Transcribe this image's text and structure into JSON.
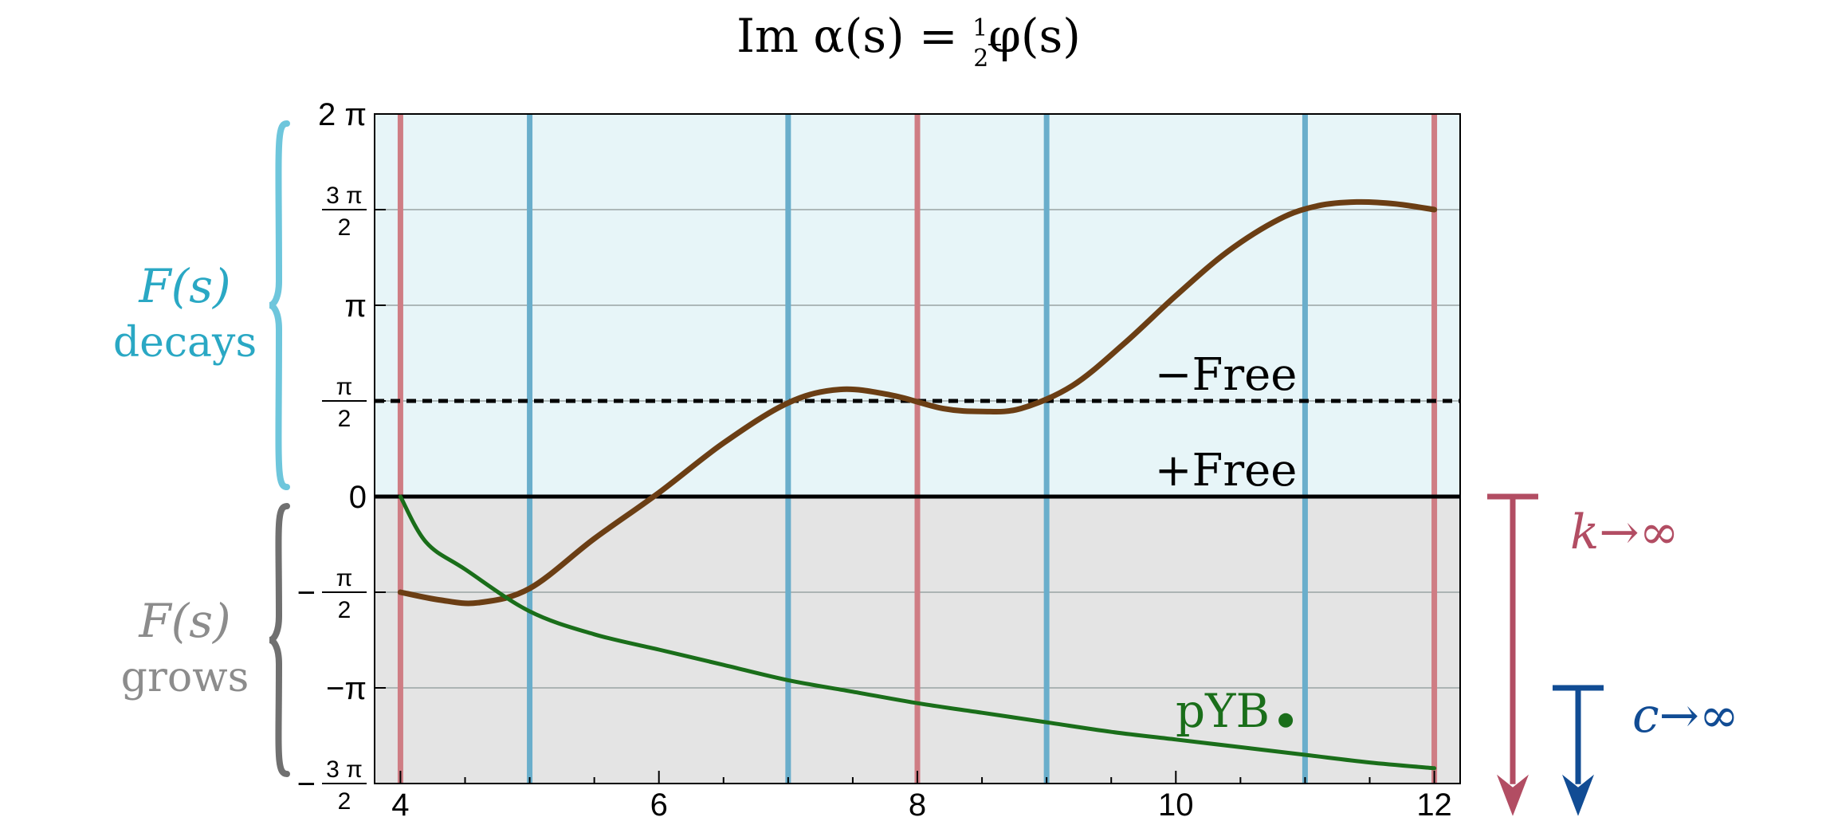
{
  "chart_data": {
    "type": "line",
    "title": {
      "prefix": "Im α(s) = ",
      "frac_num": "1",
      "frac_den": "2",
      "suffix": "φ(s)"
    },
    "xlim": [
      3.8,
      12.2
    ],
    "ylim_pi": [
      -1.5,
      2.0
    ],
    "x_ticks": [
      4,
      6,
      8,
      10,
      12
    ],
    "y_ticks": [
      {
        "value_pi": 2.0,
        "label": "2 π"
      },
      {
        "value_pi": 1.5,
        "num": "3 π",
        "den": "2"
      },
      {
        "value_pi": 1.0,
        "label": "π"
      },
      {
        "value_pi": 0.5,
        "num": "π",
        "den": "2"
      },
      {
        "value_pi": 0.0,
        "label": "0"
      },
      {
        "value_pi": -0.5,
        "sign": "−",
        "num": "π",
        "den": "2"
      },
      {
        "value_pi": -1.0,
        "label": "−π"
      },
      {
        "value_pi": -1.5,
        "sign": "−",
        "num": "3 π",
        "den": "2"
      }
    ],
    "grid": true,
    "regions": [
      {
        "from_pi": 0,
        "to_pi": 2,
        "color": "#e7f5f8",
        "line1": "F(s)",
        "line2": "decays",
        "text_color": "#2aa8c4",
        "brace_color": "#6ec6dc"
      },
      {
        "from_pi": -1.5,
        "to_pi": 0,
        "color": "#e4e4e4",
        "line1": "F(s)",
        "line2": "grows",
        "text_color": "#8c8c8c",
        "brace_color": "#707070"
      }
    ],
    "vertical_lines": {
      "red": {
        "color": "#cf7d84",
        "x": [
          4,
          8,
          12
        ]
      },
      "blue": {
        "color": "#6aaecb",
        "x": [
          5,
          7,
          9,
          11
        ]
      }
    },
    "reference_lines": [
      {
        "y_pi": 0.5,
        "style": "dashed",
        "label": "−Free"
      },
      {
        "y_pi": 0.0,
        "style": "solid",
        "label": "+Free"
      }
    ],
    "series": [
      {
        "color": "#6b3e14",
        "x": [
          4.0,
          4.3,
          4.6,
          5.0,
          5.5,
          6.0,
          6.5,
          7.0,
          7.4,
          7.8,
          8.2,
          8.5,
          8.8,
          9.2,
          9.6,
          10.0,
          10.4,
          10.8,
          11.1,
          11.4,
          11.7,
          12.0
        ],
        "y_pi": [
          -0.5,
          -0.54,
          -0.555,
          -0.48,
          -0.22,
          0.02,
          0.28,
          0.49,
          0.56,
          0.53,
          0.46,
          0.445,
          0.46,
          0.58,
          0.8,
          1.05,
          1.28,
          1.45,
          1.52,
          1.54,
          1.53,
          1.5
        ]
      },
      {
        "color": "#1a6e1a",
        "x": [
          4.0,
          4.2,
          4.5,
          5.0,
          5.5,
          6.0,
          6.5,
          7.0,
          7.5,
          8.0,
          8.5,
          9.0,
          9.5,
          10.0,
          10.5,
          11.0,
          11.5,
          12.0
        ],
        "y_pi": [
          0.0,
          -0.24,
          -0.38,
          -0.6,
          -0.72,
          -0.8,
          -0.88,
          -0.96,
          -1.02,
          -1.08,
          -1.13,
          -1.18,
          -1.23,
          -1.27,
          -1.31,
          -1.35,
          -1.39,
          -1.42
        ]
      }
    ],
    "point": {
      "x": 10.85,
      "y_pi": -1.17,
      "label": "pYB",
      "color": "#1a6e1a"
    },
    "arrows": [
      {
        "label_var": "k",
        "label_rest": "→∞",
        "color": "#b24d63",
        "from_pi": 0.0,
        "to_pi": -1.67
      },
      {
        "label_var": "c",
        "label_rest": "→∞",
        "color": "#114c94",
        "from_pi": -1.0,
        "to_pi": -1.67
      }
    ]
  }
}
